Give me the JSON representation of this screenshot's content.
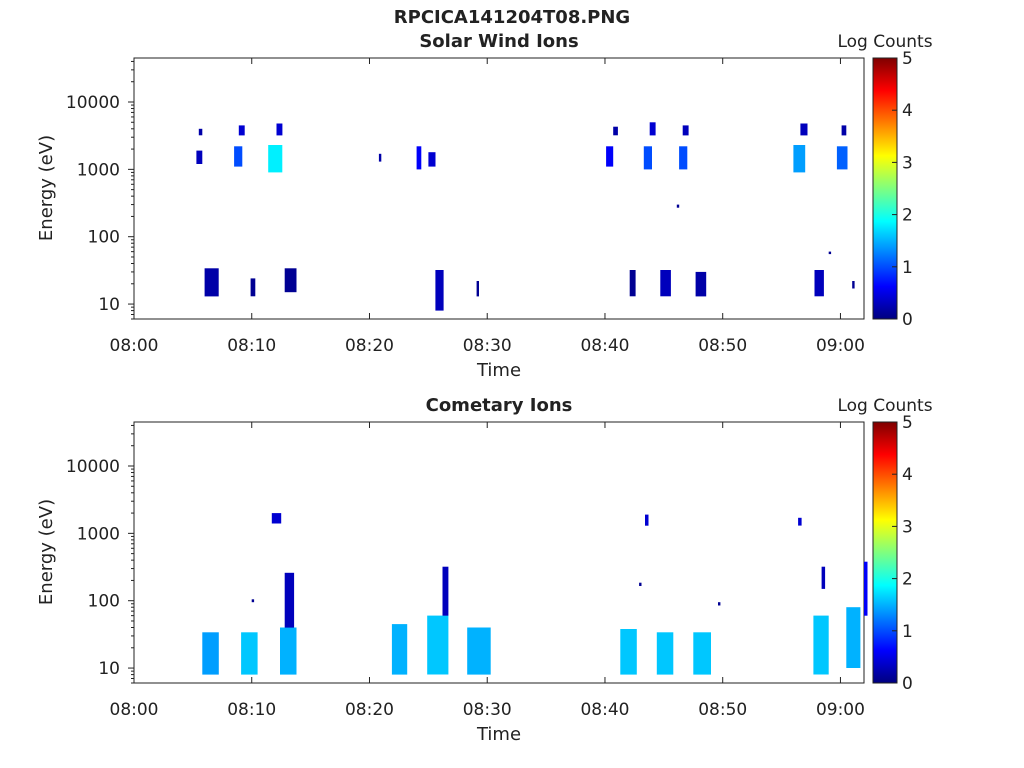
{
  "figure": {
    "title": "RPCICA141204T08.PNG"
  },
  "colorbar": {
    "label": "Log Counts",
    "ticks": [
      "0",
      "1",
      "2",
      "3",
      "4",
      "5"
    ],
    "stops": [
      "#00007f",
      "#0000ff",
      "#007fff",
      "#00ffff",
      "#7fff7f",
      "#ffff00",
      "#ff7f00",
      "#ff0000",
      "#7f0000"
    ]
  },
  "chart_data": [
    {
      "type": "heatmap",
      "title": "Solar Wind Ions",
      "xlabel": "Time",
      "ylabel": "Energy (eV)",
      "yscale": "log",
      "ylim": [
        6,
        45000
      ],
      "xlim": [
        "08:00",
        "09:02"
      ],
      "x_ticks": [
        "08:00",
        "08:10",
        "08:20",
        "08:30",
        "08:40",
        "08:50",
        "09:00"
      ],
      "y_ticks": [
        "10",
        "100",
        "1000",
        "10000"
      ],
      "zlabel": "Log Counts",
      "zlim": [
        0,
        5
      ],
      "patches": [
        {
          "t_start": "08:05.3",
          "t_end": "08:05.8",
          "e_low": 1200,
          "e_high": 1900,
          "log_counts": 0.3
        },
        {
          "t_start": "08:05.5",
          "t_end": "08:05.8",
          "e_low": 3200,
          "e_high": 4000,
          "log_counts": 0.2
        },
        {
          "t_start": "08:08.5",
          "t_end": "08:09.2",
          "e_low": 1100,
          "e_high": 2200,
          "log_counts": 1.0
        },
        {
          "t_start": "08:08.9",
          "t_end": "08:09.4",
          "e_low": 3200,
          "e_high": 4500,
          "log_counts": 0.4
        },
        {
          "t_start": "08:11.4",
          "t_end": "08:12.6",
          "e_low": 900,
          "e_high": 2300,
          "log_counts": 1.8
        },
        {
          "t_start": "08:12.1",
          "t_end": "08:12.6",
          "e_low": 3200,
          "e_high": 4800,
          "log_counts": 0.4
        },
        {
          "t_start": "08:20.8",
          "t_end": "08:21.0",
          "e_low": 1300,
          "e_high": 1700,
          "log_counts": 0.2
        },
        {
          "t_start": "08:24.0",
          "t_end": "08:24.4",
          "e_low": 1000,
          "e_high": 2200,
          "log_counts": 0.6
        },
        {
          "t_start": "08:25.0",
          "t_end": "08:25.6",
          "e_low": 1100,
          "e_high": 1800,
          "log_counts": 0.4
        },
        {
          "t_start": "08:40.1",
          "t_end": "08:40.7",
          "e_low": 1100,
          "e_high": 2200,
          "log_counts": 0.6
        },
        {
          "t_start": "08:40.7",
          "t_end": "08:41.1",
          "e_low": 3200,
          "e_high": 4300,
          "log_counts": 0.2
        },
        {
          "t_start": "08:43.3",
          "t_end": "08:44.0",
          "e_low": 1000,
          "e_high": 2200,
          "log_counts": 1.0
        },
        {
          "t_start": "08:43.8",
          "t_end": "08:44.3",
          "e_low": 3200,
          "e_high": 5000,
          "log_counts": 0.4
        },
        {
          "t_start": "08:46.3",
          "t_end": "08:47.0",
          "e_low": 1000,
          "e_high": 2200,
          "log_counts": 1.0
        },
        {
          "t_start": "08:46.6",
          "t_end": "08:47.1",
          "e_low": 3200,
          "e_high": 4500,
          "log_counts": 0.3
        },
        {
          "t_start": "08:56.0",
          "t_end": "08:57.0",
          "e_low": 900,
          "e_high": 2300,
          "log_counts": 1.4
        },
        {
          "t_start": "08:56.6",
          "t_end": "08:57.2",
          "e_low": 3200,
          "e_high": 4800,
          "log_counts": 0.3
        },
        {
          "t_start": "08:59.7",
          "t_end": "09:00.6",
          "e_low": 1000,
          "e_high": 2200,
          "log_counts": 1.1
        },
        {
          "t_start": "09:00.1",
          "t_end": "09:00.5",
          "e_low": 3200,
          "e_high": 4500,
          "log_counts": 0.2
        },
        {
          "t_start": "08:46.1",
          "t_end": "08:46.3",
          "e_low": 270,
          "e_high": 300,
          "log_counts": 0.1
        },
        {
          "t_start": "08:59.0",
          "t_end": "08:59.2",
          "e_low": 55,
          "e_high": 60,
          "log_counts": 0.1
        },
        {
          "t_start": "08:06.0",
          "t_end": "08:07.2",
          "e_low": 13,
          "e_high": 34,
          "log_counts": 0.2
        },
        {
          "t_start": "08:09.9",
          "t_end": "08:10.3",
          "e_low": 13,
          "e_high": 24,
          "log_counts": 0.1
        },
        {
          "t_start": "08:12.8",
          "t_end": "08:13.8",
          "e_low": 15,
          "e_high": 34,
          "log_counts": 0.1
        },
        {
          "t_start": "08:25.6",
          "t_end": "08:26.3",
          "e_low": 8,
          "e_high": 32,
          "log_counts": 0.3
        },
        {
          "t_start": "08:29.1",
          "t_end": "08:29.3",
          "e_low": 13,
          "e_high": 22,
          "log_counts": 0.1
        },
        {
          "t_start": "08:42.1",
          "t_end": "08:42.6",
          "e_low": 13,
          "e_high": 32,
          "log_counts": 0.1
        },
        {
          "t_start": "08:44.7",
          "t_end": "08:45.6",
          "e_low": 13,
          "e_high": 32,
          "log_counts": 0.3
        },
        {
          "t_start": "08:47.7",
          "t_end": "08:48.6",
          "e_low": 13,
          "e_high": 30,
          "log_counts": 0.2
        },
        {
          "t_start": "08:57.8",
          "t_end": "08:58.6",
          "e_low": 13,
          "e_high": 32,
          "log_counts": 0.3
        },
        {
          "t_start": "09:01.0",
          "t_end": "09:01.2",
          "e_low": 17,
          "e_high": 22,
          "log_counts": 0.1
        }
      ]
    },
    {
      "type": "heatmap",
      "title": "Cometary Ions",
      "xlabel": "Time",
      "ylabel": "Energy (eV)",
      "yscale": "log",
      "ylim": [
        6,
        45000
      ],
      "xlim": [
        "08:00",
        "09:02"
      ],
      "x_ticks": [
        "08:00",
        "08:10",
        "08:20",
        "08:30",
        "08:40",
        "08:50",
        "09:00"
      ],
      "y_ticks": [
        "10",
        "100",
        "1000",
        "10000"
      ],
      "zlabel": "Log Counts",
      "zlim": [
        0,
        5
      ],
      "patches": [
        {
          "t_start": "08:05.8",
          "t_end": "08:07.2",
          "e_low": 8,
          "e_high": 34,
          "log_counts": 1.4
        },
        {
          "t_start": "08:09.1",
          "t_end": "08:10.5",
          "e_low": 8,
          "e_high": 34,
          "log_counts": 1.6
        },
        {
          "t_start": "08:12.4",
          "t_end": "08:13.8",
          "e_low": 8,
          "e_high": 40,
          "log_counts": 1.5
        },
        {
          "t_start": "08:12.8",
          "t_end": "08:13.6",
          "e_low": 40,
          "e_high": 260,
          "log_counts": 0.3
        },
        {
          "t_start": "08:11.7",
          "t_end": "08:12.5",
          "e_low": 1400,
          "e_high": 2000,
          "log_counts": 0.4
        },
        {
          "t_start": "08:10.0",
          "t_end": "08:10.2",
          "e_low": 95,
          "e_high": 105,
          "log_counts": 0.1
        },
        {
          "t_start": "08:21.9",
          "t_end": "08:23.2",
          "e_low": 8,
          "e_high": 45,
          "log_counts": 1.5
        },
        {
          "t_start": "08:24.9",
          "t_end": "08:26.7",
          "e_low": 8,
          "e_high": 60,
          "log_counts": 1.6
        },
        {
          "t_start": "08:26.2",
          "t_end": "08:26.7",
          "e_low": 60,
          "e_high": 320,
          "log_counts": 0.3
        },
        {
          "t_start": "08:28.3",
          "t_end": "08:30.3",
          "e_low": 8,
          "e_high": 40,
          "log_counts": 1.5
        },
        {
          "t_start": "08:41.3",
          "t_end": "08:42.7",
          "e_low": 8,
          "e_high": 38,
          "log_counts": 1.6
        },
        {
          "t_start": "08:43.4",
          "t_end": "08:43.7",
          "e_low": 1300,
          "e_high": 1900,
          "log_counts": 0.4
        },
        {
          "t_start": "08:42.9",
          "t_end": "08:43.1",
          "e_low": 165,
          "e_high": 185,
          "log_counts": 0.1
        },
        {
          "t_start": "08:44.4",
          "t_end": "08:45.8",
          "e_low": 8,
          "e_high": 34,
          "log_counts": 1.6
        },
        {
          "t_start": "08:47.5",
          "t_end": "08:49.0",
          "e_low": 8,
          "e_high": 34,
          "log_counts": 1.6
        },
        {
          "t_start": "08:49.6",
          "t_end": "08:49.8",
          "e_low": 85,
          "e_high": 95,
          "log_counts": 0.1
        },
        {
          "t_start": "08:56.4",
          "t_end": "08:56.7",
          "e_low": 1300,
          "e_high": 1700,
          "log_counts": 0.4
        },
        {
          "t_start": "08:57.7",
          "t_end": "08:59.0",
          "e_low": 8,
          "e_high": 60,
          "log_counts": 1.6
        },
        {
          "t_start": "08:58.4",
          "t_end": "08:58.7",
          "e_low": 150,
          "e_high": 320,
          "log_counts": 0.3
        },
        {
          "t_start": "09:00.5",
          "t_end": "09:01.7",
          "e_low": 10,
          "e_high": 80,
          "log_counts": 1.5
        },
        {
          "t_start": "09:02.0",
          "t_end": "09:02.3",
          "e_low": 60,
          "e_high": 380,
          "log_counts": 0.6
        }
      ]
    }
  ]
}
